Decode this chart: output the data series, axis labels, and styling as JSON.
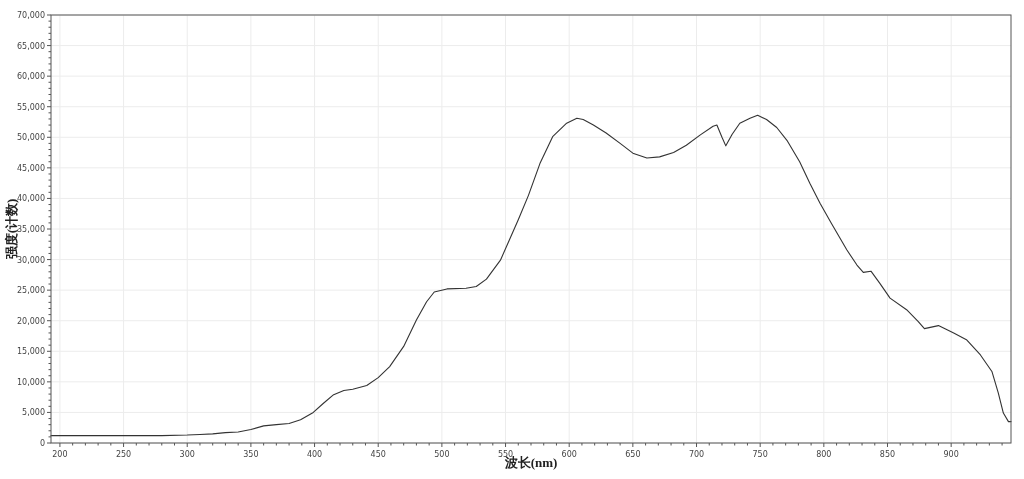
{
  "chart_data": {
    "type": "line",
    "xlabel": "波长(nm)",
    "ylabel": "强度(计数)",
    "grid": true,
    "line_style": "solid",
    "xlim": [
      193,
      947
    ],
    "ylim": [
      0,
      70000
    ],
    "xticks": [
      200,
      {
        "value": 210,
        "label": null
      },
      {
        "value": 220,
        "label": null
      },
      {
        "value": 230,
        "label": null
      },
      {
        "value": 240,
        "label": null
      },
      250,
      {
        "value": 260,
        "label": null
      },
      {
        "value": 270,
        "label": null
      },
      {
        "value": 280,
        "label": null
      },
      {
        "value": 290,
        "label": null
      },
      300,
      {
        "value": 310,
        "label": null
      },
      {
        "value": 320,
        "label": null
      },
      {
        "value": 330,
        "label": null
      },
      {
        "value": 340,
        "label": null
      },
      350,
      {
        "value": 360,
        "label": null
      },
      {
        "value": 370,
        "label": null
      },
      {
        "value": 380,
        "label": null
      },
      {
        "value": 390,
        "label": null
      },
      400,
      {
        "value": 410,
        "label": null
      },
      {
        "value": 420,
        "label": null
      },
      {
        "value": 430,
        "label": null
      },
      {
        "value": 440,
        "label": null
      },
      450,
      {
        "value": 460,
        "label": null
      },
      {
        "value": 470,
        "label": null
      },
      {
        "value": 480,
        "label": null
      },
      {
        "value": 490,
        "label": null
      },
      500,
      {
        "value": 510,
        "label": null
      },
      {
        "value": 520,
        "label": null
      },
      {
        "value": 530,
        "label": null
      },
      {
        "value": 540,
        "label": null
      },
      550,
      {
        "value": 560,
        "label": null
      },
      {
        "value": 570,
        "label": null
      },
      {
        "value": 580,
        "label": null
      },
      {
        "value": 590,
        "label": null
      },
      600,
      {
        "value": 610,
        "label": null
      },
      {
        "value": 620,
        "label": null
      },
      {
        "value": 630,
        "label": null
      },
      {
        "value": 640,
        "label": null
      },
      650,
      {
        "value": 660,
        "label": null
      },
      {
        "value": 670,
        "label": null
      },
      {
        "value": 680,
        "label": null
      },
      {
        "value": 690,
        "label": null
      },
      700,
      {
        "value": 710,
        "label": null
      },
      {
        "value": 720,
        "label": null
      },
      {
        "value": 730,
        "label": null
      },
      {
        "value": 740,
        "label": null
      },
      750,
      {
        "value": 760,
        "label": null
      },
      {
        "value": 770,
        "label": null
      },
      {
        "value": 780,
        "label": null
      },
      {
        "value": 790,
        "label": null
      },
      800,
      {
        "value": 810,
        "label": null
      },
      {
        "value": 820,
        "label": null
      },
      {
        "value": 830,
        "label": null
      },
      {
        "value": 840,
        "label": null
      },
      850,
      {
        "value": 860,
        "label": null
      },
      {
        "value": 870,
        "label": null
      },
      {
        "value": 880,
        "label": null
      },
      {
        "value": 890,
        "label": null
      },
      900,
      {
        "value": 910,
        "label": null
      },
      {
        "value": 920,
        "label": null
      },
      {
        "value": 930,
        "label": null
      },
      {
        "value": 940,
        "label": null
      }
    ],
    "yticks": [
      0,
      {
        "value": 1000,
        "label": null
      },
      {
        "value": 2000,
        "label": null
      },
      {
        "value": 3000,
        "label": null
      },
      {
        "value": 4000,
        "label": null
      },
      {
        "value": 5000,
        "label": "5,000"
      },
      {
        "value": 6000,
        "label": null
      },
      {
        "value": 7000,
        "label": null
      },
      {
        "value": 8000,
        "label": null
      },
      {
        "value": 9000,
        "label": null
      },
      {
        "value": 10000,
        "label": "10,000"
      },
      {
        "value": 11000,
        "label": null
      },
      {
        "value": 12000,
        "label": null
      },
      {
        "value": 13000,
        "label": null
      },
      {
        "value": 14000,
        "label": null
      },
      {
        "value": 15000,
        "label": "15,000"
      },
      {
        "value": 16000,
        "label": null
      },
      {
        "value": 17000,
        "label": null
      },
      {
        "value": 18000,
        "label": null
      },
      {
        "value": 19000,
        "label": null
      },
      {
        "value": 20000,
        "label": "20,000"
      },
      {
        "value": 21000,
        "label": null
      },
      {
        "value": 22000,
        "label": null
      },
      {
        "value": 23000,
        "label": null
      },
      {
        "value": 24000,
        "label": null
      },
      {
        "value": 25000,
        "label": "25,000"
      },
      {
        "value": 26000,
        "label": null
      },
      {
        "value": 27000,
        "label": null
      },
      {
        "value": 28000,
        "label": null
      },
      {
        "value": 29000,
        "label": null
      },
      {
        "value": 30000,
        "label": "30,000"
      },
      {
        "value": 31000,
        "label": null
      },
      {
        "value": 32000,
        "label": null
      },
      {
        "value": 33000,
        "label": null
      },
      {
        "value": 34000,
        "label": null
      },
      {
        "value": 35000,
        "label": "35,000"
      },
      {
        "value": 36000,
        "label": null
      },
      {
        "value": 37000,
        "label": null
      },
      {
        "value": 38000,
        "label": null
      },
      {
        "value": 39000,
        "label": null
      },
      {
        "value": 40000,
        "label": "40,000"
      },
      {
        "value": 41000,
        "label": null
      },
      {
        "value": 42000,
        "label": null
      },
      {
        "value": 43000,
        "label": null
      },
      {
        "value": 44000,
        "label": null
      },
      {
        "value": 45000,
        "label": "45,000"
      },
      {
        "value": 46000,
        "label": null
      },
      {
        "value": 47000,
        "label": null
      },
      {
        "value": 48000,
        "label": null
      },
      {
        "value": 49000,
        "label": null
      },
      {
        "value": 50000,
        "label": "50,000"
      },
      {
        "value": 51000,
        "label": null
      },
      {
        "value": 52000,
        "label": null
      },
      {
        "value": 53000,
        "label": null
      },
      {
        "value": 54000,
        "label": null
      },
      {
        "value": 55000,
        "label": "55,000"
      },
      {
        "value": 56000,
        "label": null
      },
      {
        "value": 57000,
        "label": null
      },
      {
        "value": 58000,
        "label": null
      },
      {
        "value": 59000,
        "label": null
      },
      {
        "value": 60000,
        "label": "60,000"
      },
      {
        "value": 61000,
        "label": null
      },
      {
        "value": 62000,
        "label": null
      },
      {
        "value": 63000,
        "label": null
      },
      {
        "value": 64000,
        "label": null
      },
      {
        "value": 65000,
        "label": "65,000"
      },
      {
        "value": 66000,
        "label": null
      },
      {
        "value": 67000,
        "label": null
      },
      {
        "value": 68000,
        "label": null
      },
      {
        "value": 69000,
        "label": null
      },
      {
        "value": 70000,
        "label": "70,000"
      }
    ],
    "x": [
      193,
      220,
      250,
      280,
      300,
      310,
      320,
      330,
      340,
      350,
      360,
      370,
      380,
      389,
      399,
      407,
      415,
      423,
      430,
      441,
      450,
      459,
      470,
      480,
      488,
      494,
      504,
      519,
      527,
      535,
      546,
      553,
      560,
      568,
      577,
      587,
      598,
      606,
      611,
      619,
      629,
      640,
      650,
      661,
      671,
      682,
      692,
      703,
      713,
      716,
      720,
      723,
      728,
      734,
      742,
      748,
      755,
      763,
      771,
      781,
      789,
      797,
      806,
      818,
      826,
      831,
      837,
      844,
      852,
      865,
      874,
      879,
      890,
      902,
      912,
      923,
      932,
      937,
      941,
      945,
      947
    ],
    "series": [
      {
        "color": "#333333",
        "values": [
          1200,
          1200,
          1200,
          1200,
          1300,
          1400,
          1500,
          1700,
          1800,
          2200,
          2800,
          3000,
          3200,
          3800,
          5000,
          6500,
          7900,
          8600,
          8800,
          9400,
          10700,
          12500,
          15800,
          20100,
          23100,
          24700,
          25200,
          25300,
          25600,
          26800,
          29900,
          33200,
          36500,
          40500,
          45700,
          50100,
          52300,
          53100,
          52900,
          52000,
          50700,
          49000,
          47400,
          46600,
          46800,
          47500,
          48700,
          50400,
          51800,
          52000,
          50000,
          48600,
          50500,
          52300,
          53100,
          53600,
          52900,
          51600,
          49500,
          46000,
          42500,
          39200,
          35900,
          31600,
          29100,
          27900,
          28100,
          26100,
          23700,
          21800,
          19900,
          18700,
          19200,
          18000,
          16900,
          14400,
          11700,
          8200,
          4900,
          3500,
          3500
        ]
      }
    ]
  }
}
